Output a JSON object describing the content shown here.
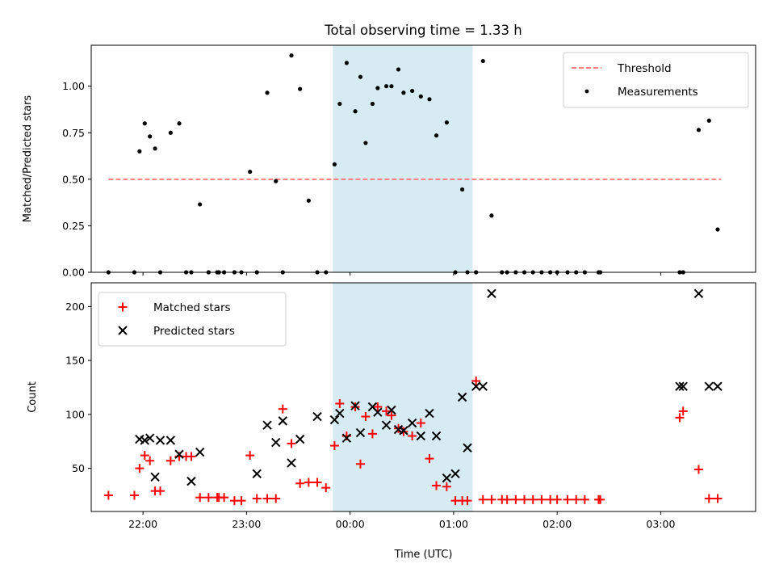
{
  "chart_data": [
    {
      "type": "scatter",
      "title": "Total observing time = 1.33 h",
      "xlabel": "",
      "ylabel": "Matched/Predicted stars",
      "xlim": [
        "21:30",
        "03:55"
      ],
      "ylim": [
        0,
        1.22
      ],
      "yticks": [
        "0.00",
        "0.25",
        "0.50",
        "0.75",
        "1.00"
      ],
      "shaded_interval": [
        "23:50",
        "01:11"
      ],
      "shade_color": "#add8e6",
      "legend": {
        "placement": "top-right",
        "entries": [
          "Threshold",
          "Measurements"
        ]
      },
      "series": [
        {
          "name": "Threshold",
          "style": "dashed-line",
          "color": "#ff7f7f",
          "x": [
            "21:40",
            "03:35"
          ],
          "y": [
            0.5,
            0.5
          ]
        },
        {
          "name": "Measurements",
          "style": "dots",
          "color": "#000000",
          "x": [
            "21:40",
            "21:55",
            "21:58",
            "22:01",
            "22:04",
            "22:07",
            "22:10",
            "22:16",
            "22:21",
            "22:25",
            "22:28",
            "22:33",
            "22:38",
            "22:43",
            "22:44",
            "22:47",
            "22:53",
            "22:57",
            "23:02",
            "23:06",
            "23:12",
            "23:17",
            "23:21",
            "23:26",
            "23:31",
            "23:36",
            "23:41",
            "23:46",
            "23:51",
            "23:54",
            "23:58",
            "24:03",
            "24:06",
            "24:09",
            "24:13",
            "24:16",
            "24:21",
            "24:24",
            "24:28",
            "24:31",
            "24:36",
            "24:41",
            "24:46",
            "24:50",
            "24:56",
            "25:01",
            "25:05",
            "25:08",
            "25:13",
            "25:17",
            "25:22",
            "25:28",
            "25:31",
            "25:36",
            "25:41",
            "25:46",
            "25:51",
            "25:56",
            "26:00",
            "26:06",
            "26:11",
            "26:16",
            "26:24",
            "26:25",
            "27:11",
            "27:13",
            "27:22",
            "27:28",
            "27:33"
          ],
          "y": [
            0,
            0,
            0.65,
            0.8,
            0.73,
            0.665,
            0,
            0.75,
            0.8,
            0,
            0,
            0.365,
            0,
            0,
            0,
            0,
            0,
            0,
            0.54,
            0,
            0.965,
            0.49,
            0,
            1.165,
            0.985,
            0.385,
            0,
            0,
            0.58,
            0.905,
            1.125,
            0.865,
            1.05,
            0.695,
            0.905,
            0.99,
            1.0,
            1.0,
            1.09,
            0.965,
            0.975,
            0.945,
            0.93,
            0.735,
            0.805,
            0,
            0.445,
            0,
            0,
            1.135,
            0.305,
            0,
            0,
            0,
            0,
            0,
            0,
            0,
            0,
            0,
            0,
            0,
            0,
            0,
            0,
            0,
            0.765,
            0.815,
            0.23
          ]
        }
      ]
    },
    {
      "type": "scatter",
      "title": "",
      "xlabel": "Time (UTC)",
      "ylabel": "Count",
      "xlim": [
        "21:30",
        "03:55"
      ],
      "ylim": [
        10,
        222
      ],
      "yticks": [
        "50",
        "100",
        "150",
        "200"
      ],
      "xticks": [
        "22:00",
        "23:00",
        "00:00",
        "01:00",
        "02:00",
        "03:00"
      ],
      "shaded_interval": [
        "23:50",
        "01:11"
      ],
      "shade_color": "#add8e6",
      "legend": {
        "placement": "top-left",
        "entries": [
          "Matched stars",
          "Predicted stars"
        ]
      },
      "series": [
        {
          "name": "Matched stars",
          "marker": "plus",
          "color": "#ff0000",
          "x": [
            "21:40",
            "21:55",
            "21:58",
            "22:01",
            "22:04",
            "22:07",
            "22:10",
            "22:16",
            "22:21",
            "22:25",
            "22:28",
            "22:33",
            "22:38",
            "22:43",
            "22:44",
            "22:47",
            "22:53",
            "22:57",
            "23:02",
            "23:06",
            "23:12",
            "23:17",
            "23:21",
            "23:26",
            "23:31",
            "23:36",
            "23:41",
            "23:46",
            "23:51",
            "23:54",
            "23:58",
            "24:03",
            "24:06",
            "24:09",
            "24:13",
            "24:16",
            "24:21",
            "24:24",
            "24:28",
            "24:31",
            "24:36",
            "24:41",
            "24:46",
            "24:50",
            "24:56",
            "25:01",
            "25:05",
            "25:08",
            "25:13",
            "25:17",
            "25:22",
            "25:28",
            "25:31",
            "25:36",
            "25:41",
            "25:46",
            "25:51",
            "25:56",
            "26:00",
            "26:06",
            "26:11",
            "26:16",
            "26:24",
            "26:25",
            "27:11",
            "27:13",
            "27:22",
            "27:28",
            "27:33"
          ],
          "y": [
            25,
            25,
            50,
            62,
            57,
            29,
            29,
            57,
            61,
            61,
            61,
            23,
            23,
            23,
            23,
            23,
            20,
            20,
            62,
            22,
            22,
            22,
            105,
            73,
            36,
            37,
            37,
            32,
            71,
            110,
            80,
            107,
            54,
            98,
            82,
            107,
            103,
            99,
            87,
            84,
            80,
            92,
            59,
            34,
            33,
            20,
            20,
            20,
            131,
            21,
            21,
            21,
            21,
            21,
            21,
            21,
            21,
            21,
            21,
            21,
            21,
            21,
            21,
            21,
            97,
            103,
            49,
            22,
            22
          ]
        },
        {
          "name": "Predicted stars",
          "marker": "x",
          "color": "#000000",
          "x": [
            "21:58",
            "22:01",
            "22:04",
            "22:07",
            "22:10",
            "22:16",
            "22:21",
            "22:28",
            "22:33",
            "23:06",
            "23:12",
            "23:17",
            "23:21",
            "23:26",
            "23:31",
            "23:41",
            "23:51",
            "23:54",
            "23:58",
            "24:03",
            "24:06",
            "24:13",
            "24:16",
            "24:21",
            "24:24",
            "24:28",
            "24:31",
            "24:36",
            "24:41",
            "24:46",
            "24:50",
            "24:56",
            "25:01",
            "25:05",
            "25:08",
            "25:13",
            "25:17",
            "25:22",
            "27:11",
            "27:13",
            "27:22",
            "27:28",
            "27:33"
          ],
          "y": [
            77,
            76,
            78,
            42,
            76,
            76,
            63,
            38,
            65,
            45,
            90,
            74,
            94,
            55,
            77,
            98,
            95,
            101,
            78,
            108,
            83,
            107,
            102,
            90,
            104,
            86,
            85,
            92,
            80,
            101,
            80,
            41,
            45,
            116,
            69,
            126,
            126,
            212,
            126,
            126,
            212,
            126,
            126
          ]
        }
      ]
    }
  ]
}
